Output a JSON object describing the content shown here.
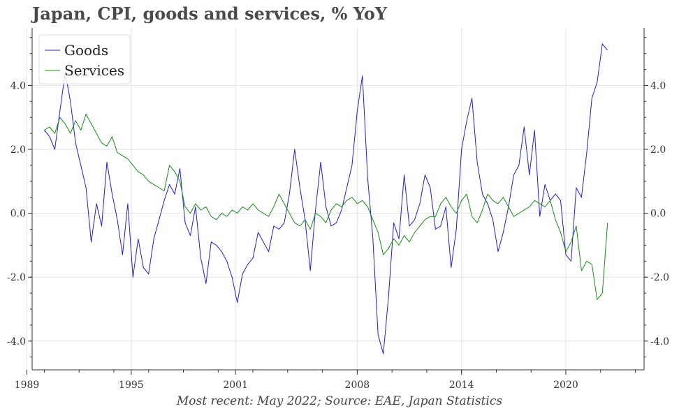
{
  "title": "Japan, CPI, goods and services, % YoY",
  "source": "Most recent: May 2022; Source: EAE, Japan Statistics",
  "chart_data": {
    "type": "line",
    "title": "Japan, CPI, goods and services, % YoY",
    "xlabel": "",
    "ylabel": "",
    "xlim": [
      1989.3,
      2024.5
    ],
    "ylim": [
      -4.9,
      5.8
    ],
    "x_ticks": [
      1989,
      1995,
      2001,
      2008,
      2014,
      2020
    ],
    "x_tick_labels": [
      "1989",
      "1995",
      "2001",
      "2008",
      "2014",
      "2020"
    ],
    "y_ticks": [
      -4.0,
      -2.0,
      0.0,
      2.0,
      4.0
    ],
    "y_tick_labels": [
      "-4.0",
      "-2.0",
      "0.0",
      "2.0",
      "4.0"
    ],
    "y_axis_sides": [
      "left",
      "right"
    ],
    "grid": true,
    "legend": "top-left",
    "series": [
      {
        "name": "Goods",
        "color": "#1f1fd6",
        "x": [
          1990.0,
          1990.3,
          1990.6,
          1990.9,
          1991.2,
          1991.5,
          1991.8,
          1992.1,
          1992.4,
          1992.7,
          1993.0,
          1993.3,
          1993.6,
          1993.9,
          1994.2,
          1994.5,
          1994.8,
          1995.1,
          1995.4,
          1995.7,
          1996.0,
          1996.3,
          1996.6,
          1996.9,
          1997.2,
          1997.5,
          1997.8,
          1998.1,
          1998.4,
          1998.7,
          1999.0,
          1999.3,
          1999.6,
          1999.9,
          2000.2,
          2000.5,
          2000.8,
          2001.1,
          2001.4,
          2001.7,
          2002.0,
          2002.3,
          2002.6,
          2002.9,
          2003.2,
          2003.5,
          2003.8,
          2004.1,
          2004.4,
          2004.7,
          2005.0,
          2005.3,
          2005.6,
          2005.9,
          2006.2,
          2006.5,
          2006.8,
          2007.1,
          2007.4,
          2007.7,
          2008.0,
          2008.3,
          2008.6,
          2008.9,
          2009.2,
          2009.5,
          2009.8,
          2010.1,
          2010.4,
          2010.7,
          2011.0,
          2011.3,
          2011.6,
          2011.9,
          2012.2,
          2012.5,
          2012.8,
          2013.1,
          2013.4,
          2013.7,
          2014.0,
          2014.3,
          2014.6,
          2014.9,
          2015.2,
          2015.5,
          2015.8,
          2016.1,
          2016.4,
          2016.7,
          2017.0,
          2017.3,
          2017.6,
          2017.9,
          2018.2,
          2018.5,
          2018.8,
          2019.1,
          2019.4,
          2019.7,
          2020.0,
          2020.3,
          2020.6,
          2020.9,
          2021.2,
          2021.5,
          2021.8,
          2022.1,
          2022.4
        ],
        "values": [
          2.6,
          2.4,
          2.0,
          3.2,
          4.4,
          3.5,
          2.2,
          1.5,
          0.8,
          -0.9,
          0.3,
          -0.4,
          1.6,
          0.6,
          -0.2,
          -1.3,
          0.3,
          -2.0,
          -0.8,
          -1.7,
          -1.9,
          -0.8,
          -0.2,
          0.4,
          0.9,
          0.6,
          1.4,
          -0.3,
          -0.7,
          0.2,
          -1.4,
          -2.2,
          -0.9,
          -1.0,
          -1.2,
          -1.5,
          -2.0,
          -2.8,
          -1.9,
          -1.6,
          -1.4,
          -0.6,
          -0.9,
          -1.2,
          -0.4,
          -0.5,
          -0.3,
          0.6,
          2.0,
          0.8,
          -0.2,
          -1.8,
          0.1,
          1.6,
          0.2,
          -0.4,
          -0.3,
          0.1,
          0.8,
          1.5,
          3.2,
          4.3,
          1.1,
          -0.8,
          -3.8,
          -4.4,
          -2.6,
          -0.3,
          -0.8,
          1.2,
          -0.4,
          -0.2,
          0.3,
          1.2,
          0.8,
          -0.5,
          -0.4,
          0.2,
          -1.7,
          -0.5,
          2.0,
          2.9,
          3.6,
          1.6,
          0.6,
          0.3,
          -0.2,
          -1.2,
          -0.6,
          0.2,
          1.2,
          1.5,
          2.7,
          1.2,
          2.6,
          -0.1,
          0.9,
          0.4,
          0.6,
          0.4,
          -1.3,
          -1.5,
          0.8,
          0.5,
          1.9,
          3.6,
          4.1,
          5.3,
          5.1
        ]
      },
      {
        "name": "Services",
        "color": "#1a8c1a",
        "x": [
          1990.0,
          1990.3,
          1990.6,
          1990.9,
          1991.2,
          1991.5,
          1991.8,
          1992.1,
          1992.4,
          1992.7,
          1993.0,
          1993.3,
          1993.6,
          1993.9,
          1994.2,
          1994.5,
          1994.8,
          1995.1,
          1995.4,
          1995.7,
          1996.0,
          1996.3,
          1996.6,
          1996.9,
          1997.2,
          1997.5,
          1997.8,
          1998.1,
          1998.4,
          1998.7,
          1999.0,
          1999.3,
          1999.6,
          1999.9,
          2000.2,
          2000.5,
          2000.8,
          2001.1,
          2001.4,
          2001.7,
          2002.0,
          2002.3,
          2002.6,
          2002.9,
          2003.2,
          2003.5,
          2003.8,
          2004.1,
          2004.4,
          2004.7,
          2005.0,
          2005.3,
          2005.6,
          2005.9,
          2006.2,
          2006.5,
          2006.8,
          2007.1,
          2007.4,
          2007.7,
          2008.0,
          2008.3,
          2008.6,
          2008.9,
          2009.2,
          2009.5,
          2009.8,
          2010.1,
          2010.4,
          2010.7,
          2011.0,
          2011.3,
          2011.6,
          2011.9,
          2012.2,
          2012.5,
          2012.8,
          2013.1,
          2013.4,
          2013.7,
          2014.0,
          2014.3,
          2014.6,
          2014.9,
          2015.2,
          2015.5,
          2015.8,
          2016.1,
          2016.4,
          2016.7,
          2017.0,
          2017.3,
          2017.6,
          2017.9,
          2018.2,
          2018.5,
          2018.8,
          2019.1,
          2019.4,
          2019.7,
          2020.0,
          2020.3,
          2020.6,
          2020.9,
          2021.2,
          2021.5,
          2021.8,
          2022.1,
          2022.4
        ],
        "values": [
          2.6,
          2.7,
          2.5,
          3.0,
          2.8,
          2.5,
          2.9,
          2.6,
          3.1,
          2.8,
          2.5,
          2.2,
          2.1,
          2.4,
          1.9,
          1.8,
          1.7,
          1.5,
          1.3,
          1.2,
          1.0,
          0.9,
          0.8,
          0.7,
          1.5,
          1.3,
          1.0,
          0.2,
          0.0,
          0.3,
          0.1,
          0.2,
          -0.1,
          -0.2,
          0.0,
          -0.1,
          0.1,
          0.0,
          0.2,
          0.1,
          0.3,
          0.1,
          0.0,
          -0.1,
          0.2,
          0.6,
          0.3,
          0.0,
          -0.3,
          -0.4,
          -0.2,
          -0.5,
          0.0,
          -0.1,
          -0.3,
          0.1,
          0.3,
          0.2,
          0.4,
          0.5,
          0.3,
          0.4,
          0.2,
          -0.2,
          -0.6,
          -1.3,
          -1.1,
          -0.8,
          -1.0,
          -0.7,
          -0.9,
          -0.6,
          -0.4,
          -0.2,
          -0.1,
          -0.1,
          0.3,
          0.5,
          0.2,
          0.0,
          0.4,
          0.6,
          -0.1,
          -0.3,
          0.1,
          0.6,
          0.4,
          0.3,
          0.5,
          0.2,
          -0.1,
          0.0,
          0.1,
          0.2,
          0.4,
          0.3,
          0.2,
          0.4,
          -0.2,
          -0.6,
          -1.2,
          -0.9,
          -0.4,
          -1.8,
          -1.5,
          -1.6,
          -2.7,
          -2.5,
          -0.3
        ]
      }
    ]
  }
}
